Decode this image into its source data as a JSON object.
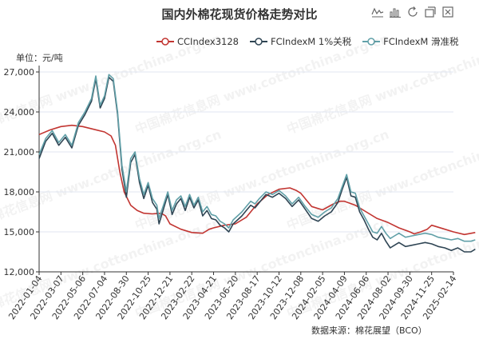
{
  "title": "国内外棉花现货价格走势对比",
  "unit_label": "单位：元/吨",
  "source_label": "数据来源：棉花展望（BCO）",
  "watermark": "中国棉花信息网 www.cottonchina.org.cn",
  "toolbox": {
    "icons": [
      "line-chart-icon",
      "bar-chart-icon",
      "restore-icon",
      "stack-icon",
      "save-image-icon"
    ]
  },
  "legend": [
    {
      "label": "CCIndex3128",
      "color": "#c23531"
    },
    {
      "label": "FCIndexM 1%关税",
      "color": "#2f4554"
    },
    {
      "label": "FCIndexM 滑准税",
      "color": "#61a0a8"
    }
  ],
  "chart_data": {
    "type": "line",
    "title": "国内外棉花现货价格走势对比",
    "ylabel": "单位：元/吨",
    "ylim": [
      12000,
      27000
    ],
    "y_ticks": [
      "12,000",
      "15,000",
      "18,000",
      "21,000",
      "24,000",
      "27,000"
    ],
    "x_ticks": [
      "2022-01-04",
      "2022-03-07",
      "2022-05-06",
      "2022-07-04",
      "2022-08-30",
      "2022-10-25",
      "2022-12-21",
      "2023-02-22",
      "2023-04-21",
      "2023-06-20",
      "2023-08-17",
      "2023-10-12",
      "2023-12-08",
      "2024-02-05",
      "2024-04-09",
      "2024-06-06",
      "2024-08-02",
      "2024-09-30",
      "2024-11-25",
      "2025-02-14"
    ],
    "grid": true,
    "legend_position": "top-right",
    "series": [
      {
        "name": "CCIndex3128",
        "color": "#c23531",
        "points": [
          [
            0,
            22300
          ],
          [
            0.5,
            22650
          ],
          [
            1,
            22900
          ],
          [
            1.5,
            23000
          ],
          [
            2,
            22900
          ],
          [
            2.5,
            22700
          ],
          [
            3,
            22500
          ],
          [
            3.3,
            22200
          ],
          [
            3.5,
            21500
          ],
          [
            3.7,
            19500
          ],
          [
            3.9,
            18000
          ],
          [
            4.2,
            17000
          ],
          [
            4.5,
            16600
          ],
          [
            4.8,
            16400
          ],
          [
            5.2,
            16350
          ],
          [
            5.6,
            16400
          ],
          [
            5.8,
            16200
          ],
          [
            6,
            15600
          ],
          [
            6.5,
            15200
          ],
          [
            7,
            14950
          ],
          [
            7.5,
            14900
          ],
          [
            7.8,
            15200
          ],
          [
            8,
            15300
          ],
          [
            8.5,
            15500
          ],
          [
            9,
            15600
          ],
          [
            9.5,
            16100
          ],
          [
            10,
            17100
          ],
          [
            10.5,
            17800
          ],
          [
            11,
            18200
          ],
          [
            11.5,
            18300
          ],
          [
            11.8,
            18100
          ],
          [
            12,
            17900
          ],
          [
            12.5,
            16900
          ],
          [
            13,
            16650
          ],
          [
            13.5,
            17100
          ],
          [
            13.8,
            17300
          ],
          [
            14,
            17300
          ],
          [
            14.5,
            17000
          ],
          [
            15,
            16500
          ],
          [
            15.5,
            16000
          ],
          [
            16,
            15700
          ],
          [
            16.5,
            15300
          ],
          [
            17,
            15000
          ],
          [
            17.2,
            14850
          ],
          [
            17.5,
            15000
          ],
          [
            17.8,
            15200
          ],
          [
            18,
            15500
          ],
          [
            18.5,
            15250
          ],
          [
            19,
            15000
          ],
          [
            19.5,
            14800
          ],
          [
            20,
            14950
          ]
        ]
      },
      {
        "name": "FCIndexM 1%关税",
        "color": "#2f4554",
        "points": [
          [
            0,
            20500
          ],
          [
            0.3,
            21800
          ],
          [
            0.6,
            22400
          ],
          [
            0.9,
            21500
          ],
          [
            1.2,
            22100
          ],
          [
            1.5,
            21300
          ],
          [
            1.8,
            23000
          ],
          [
            2.1,
            23800
          ],
          [
            2.4,
            24800
          ],
          [
            2.6,
            26500
          ],
          [
            2.8,
            24300
          ],
          [
            3,
            25000
          ],
          [
            3.2,
            26600
          ],
          [
            3.4,
            26300
          ],
          [
            3.6,
            23800
          ],
          [
            3.8,
            19700
          ],
          [
            4,
            17600
          ],
          [
            4.2,
            20200
          ],
          [
            4.4,
            20800
          ],
          [
            4.6,
            18700
          ],
          [
            4.8,
            17500
          ],
          [
            5,
            18500
          ],
          [
            5.2,
            17200
          ],
          [
            5.4,
            16700
          ],
          [
            5.5,
            15600
          ],
          [
            5.7,
            16700
          ],
          [
            5.9,
            17800
          ],
          [
            6.1,
            16300
          ],
          [
            6.3,
            17100
          ],
          [
            6.5,
            17500
          ],
          [
            6.7,
            16600
          ],
          [
            6.9,
            17600
          ],
          [
            7.1,
            16800
          ],
          [
            7.3,
            17400
          ],
          [
            7.5,
            16200
          ],
          [
            7.7,
            16600
          ],
          [
            7.9,
            16000
          ],
          [
            8.1,
            15900
          ],
          [
            8.3,
            15500
          ],
          [
            8.5,
            15300
          ],
          [
            8.7,
            15000
          ],
          [
            8.9,
            15600
          ],
          [
            9.1,
            15900
          ],
          [
            9.3,
            16200
          ],
          [
            9.5,
            16600
          ],
          [
            9.7,
            17000
          ],
          [
            9.9,
            16800
          ],
          [
            10.1,
            17200
          ],
          [
            10.4,
            17800
          ],
          [
            10.7,
            17600
          ],
          [
            11,
            17900
          ],
          [
            11.3,
            17500
          ],
          [
            11.6,
            16900
          ],
          [
            11.9,
            17400
          ],
          [
            12.2,
            16700
          ],
          [
            12.5,
            16000
          ],
          [
            12.8,
            15800
          ],
          [
            13.1,
            16200
          ],
          [
            13.4,
            16500
          ],
          [
            13.7,
            17200
          ],
          [
            13.9,
            18200
          ],
          [
            14.1,
            19100
          ],
          [
            14.3,
            17700
          ],
          [
            14.5,
            17600
          ],
          [
            14.7,
            16500
          ],
          [
            14.9,
            15900
          ],
          [
            15.1,
            15200
          ],
          [
            15.3,
            14600
          ],
          [
            15.5,
            14400
          ],
          [
            15.7,
            14900
          ],
          [
            15.9,
            14300
          ],
          [
            16.1,
            13800
          ],
          [
            16.3,
            14000
          ],
          [
            16.5,
            14200
          ],
          [
            16.8,
            13900
          ],
          [
            17.1,
            14000
          ],
          [
            17.4,
            14100
          ],
          [
            17.7,
            14200
          ],
          [
            18,
            14100
          ],
          [
            18.3,
            13900
          ],
          [
            18.6,
            13800
          ],
          [
            18.9,
            13600
          ],
          [
            19.2,
            13800
          ],
          [
            19.5,
            13500
          ],
          [
            19.8,
            13500
          ],
          [
            20,
            13700
          ]
        ]
      },
      {
        "name": "FCIndexM 滑准税",
        "color": "#61a0a8",
        "points": [
          [
            0,
            20800
          ],
          [
            0.3,
            22000
          ],
          [
            0.6,
            22600
          ],
          [
            0.9,
            21700
          ],
          [
            1.2,
            22300
          ],
          [
            1.5,
            21500
          ],
          [
            1.8,
            23200
          ],
          [
            2.1,
            24000
          ],
          [
            2.4,
            25000
          ],
          [
            2.6,
            26700
          ],
          [
            2.8,
            24500
          ],
          [
            3,
            25200
          ],
          [
            3.2,
            26800
          ],
          [
            3.4,
            26500
          ],
          [
            3.6,
            24000
          ],
          [
            3.8,
            20000
          ],
          [
            4,
            18000
          ],
          [
            4.2,
            20500
          ],
          [
            4.4,
            21000
          ],
          [
            4.6,
            19000
          ],
          [
            4.8,
            17800
          ],
          [
            5,
            18700
          ],
          [
            5.2,
            17500
          ],
          [
            5.4,
            17000
          ],
          [
            5.5,
            16000
          ],
          [
            5.7,
            17000
          ],
          [
            5.9,
            18000
          ],
          [
            6.1,
            16600
          ],
          [
            6.3,
            17400
          ],
          [
            6.5,
            17700
          ],
          [
            6.7,
            16900
          ],
          [
            6.9,
            17800
          ],
          [
            7.1,
            17000
          ],
          [
            7.3,
            17600
          ],
          [
            7.5,
            16500
          ],
          [
            7.7,
            16900
          ],
          [
            7.9,
            16300
          ],
          [
            8.1,
            16200
          ],
          [
            8.3,
            15800
          ],
          [
            8.5,
            15600
          ],
          [
            8.7,
            15300
          ],
          [
            8.9,
            15900
          ],
          [
            9.1,
            16200
          ],
          [
            9.3,
            16500
          ],
          [
            9.5,
            16900
          ],
          [
            9.7,
            17300
          ],
          [
            9.9,
            17100
          ],
          [
            10.1,
            17500
          ],
          [
            10.4,
            18000
          ],
          [
            10.7,
            17800
          ],
          [
            11,
            18100
          ],
          [
            11.3,
            17700
          ],
          [
            11.6,
            17100
          ],
          [
            11.9,
            17600
          ],
          [
            12.2,
            16900
          ],
          [
            12.5,
            16300
          ],
          [
            12.8,
            16100
          ],
          [
            13.1,
            16500
          ],
          [
            13.4,
            16800
          ],
          [
            13.7,
            17500
          ],
          [
            13.9,
            18400
          ],
          [
            14.1,
            19300
          ],
          [
            14.3,
            18000
          ],
          [
            14.5,
            17900
          ],
          [
            14.7,
            16800
          ],
          [
            14.9,
            16200
          ],
          [
            15.1,
            15600
          ],
          [
            15.3,
            15000
          ],
          [
            15.5,
            14900
          ],
          [
            15.7,
            15400
          ],
          [
            15.9,
            14900
          ],
          [
            16.1,
            14500
          ],
          [
            16.3,
            14700
          ],
          [
            16.5,
            14900
          ],
          [
            16.8,
            14600
          ],
          [
            17.1,
            14700
          ],
          [
            17.4,
            14800
          ],
          [
            17.7,
            14900
          ],
          [
            18,
            14800
          ],
          [
            18.3,
            14600
          ],
          [
            18.6,
            14500
          ],
          [
            18.9,
            14400
          ],
          [
            19.2,
            14500
          ],
          [
            19.5,
            14300
          ],
          [
            19.8,
            14300
          ],
          [
            20,
            14400
          ]
        ]
      }
    ]
  }
}
